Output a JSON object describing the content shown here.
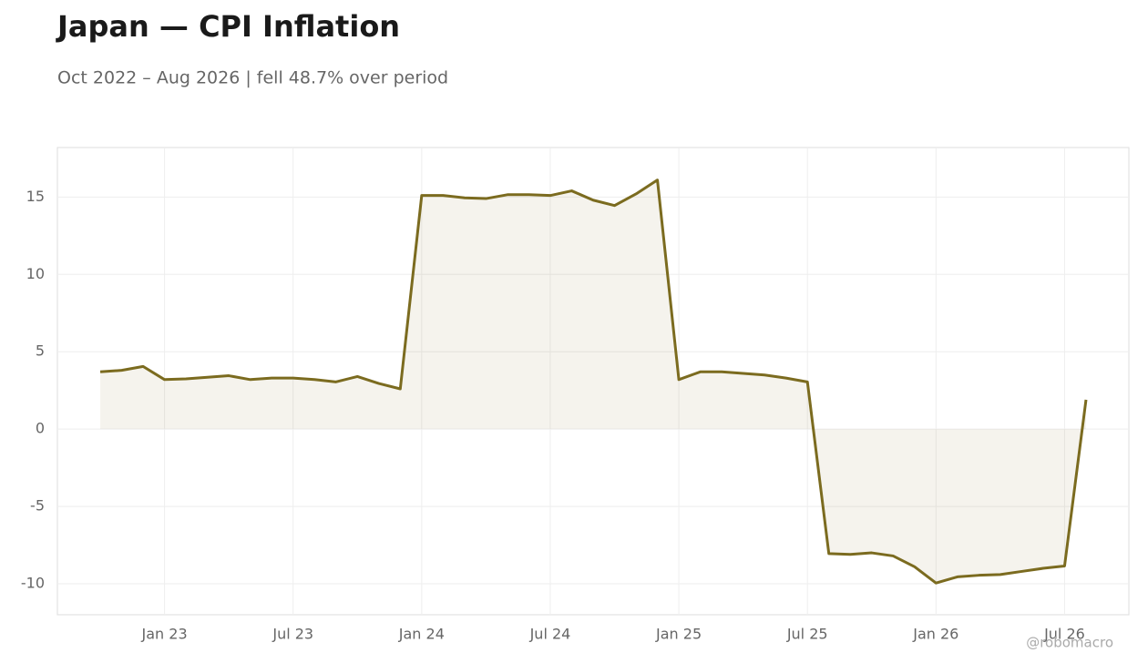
{
  "chart_data": {
    "type": "line",
    "title": "Japan — CPI Inflation",
    "subtitle": "Oct 2022 – Aug 2026 | fell 48.7% over period",
    "watermark": "@robomacro",
    "x": [
      "2022-10",
      "2022-11",
      "2022-12",
      "2023-01",
      "2023-02",
      "2023-03",
      "2023-04",
      "2023-05",
      "2023-06",
      "2023-07",
      "2023-08",
      "2023-09",
      "2023-10",
      "2023-11",
      "2023-12",
      "2024-01",
      "2024-02",
      "2024-03",
      "2024-04",
      "2024-05",
      "2024-06",
      "2024-07",
      "2024-08",
      "2024-09",
      "2024-10",
      "2024-11",
      "2024-12",
      "2025-01",
      "2025-02",
      "2025-03",
      "2025-04",
      "2025-05",
      "2025-06",
      "2025-07",
      "2025-08",
      "2025-09",
      "2025-10",
      "2025-11",
      "2025-12",
      "2026-01",
      "2026-02",
      "2026-03",
      "2026-04",
      "2026-05",
      "2026-06",
      "2026-07",
      "2026-08"
    ],
    "series": [
      {
        "name": "CPI Inflation",
        "color": "#7b6b1f",
        "values": [
          3.7,
          3.8,
          4.05,
          3.2,
          3.25,
          3.35,
          3.45,
          3.2,
          3.3,
          3.3,
          3.2,
          3.05,
          3.4,
          2.95,
          2.6,
          15.1,
          15.1,
          14.95,
          14.9,
          15.15,
          15.15,
          15.1,
          15.4,
          14.8,
          14.45,
          15.2,
          16.1,
          3.2,
          3.7,
          3.7,
          3.6,
          3.5,
          3.3,
          3.05,
          -8.05,
          -8.1,
          -8.0,
          -8.2,
          -8.9,
          -9.95,
          -9.55,
          -9.45,
          -9.4,
          -9.2,
          -9.0,
          -8.85,
          1.9
        ]
      }
    ],
    "xlim": [
      "2022-08",
      "2026-10"
    ],
    "xticks": [
      {
        "value": "2023-01",
        "label": "Jan 23"
      },
      {
        "value": "2023-07",
        "label": "Jul 23"
      },
      {
        "value": "2024-01",
        "label": "Jan 24"
      },
      {
        "value": "2024-07",
        "label": "Jul 24"
      },
      {
        "value": "2025-01",
        "label": "Jan 25"
      },
      {
        "value": "2025-07",
        "label": "Jul 25"
      },
      {
        "value": "2026-01",
        "label": "Jan 26"
      },
      {
        "value": "2026-07",
        "label": "Jul 26"
      }
    ],
    "ylim": [
      -12,
      18.2
    ],
    "yticks": [
      -10,
      -5,
      0,
      5,
      10,
      15
    ],
    "grid": true
  }
}
